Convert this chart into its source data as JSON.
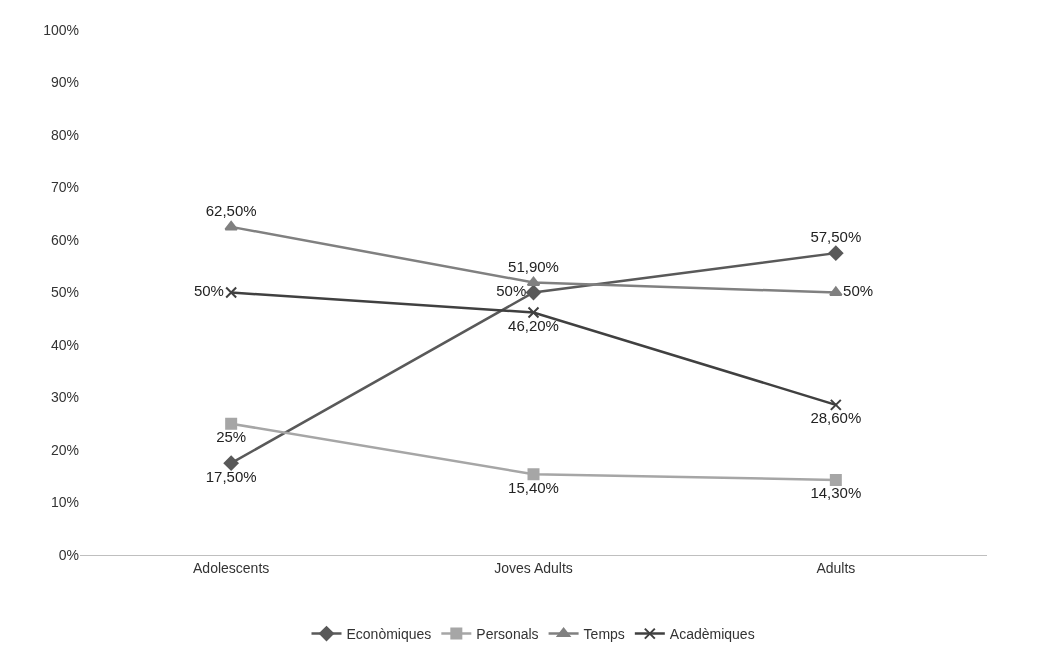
{
  "chart_data": {
    "type": "line",
    "categories": [
      "Adolescents",
      "Joves Adults",
      "Adults"
    ],
    "series": [
      {
        "name": "Econòmiques",
        "color": "#595959",
        "marker": "diamond",
        "values": [
          17.5,
          50,
          57.5
        ],
        "value_labels": [
          "17,50%",
          "50%",
          "57,50%"
        ]
      },
      {
        "name": "Personals",
        "color": "#a6a6a6",
        "marker": "square",
        "values": [
          25,
          15.4,
          14.3
        ],
        "value_labels": [
          "25%",
          "15,40%",
          "14,30%"
        ]
      },
      {
        "name": "Temps",
        "color": "#808080",
        "marker": "triangle",
        "values": [
          62.5,
          51.9,
          50
        ],
        "value_labels": [
          "62,50%",
          "51,90%",
          "50%"
        ]
      },
      {
        "name": "Acadèmiques",
        "color": "#404040",
        "marker": "cross",
        "values": [
          50,
          46.2,
          28.6
        ],
        "value_labels": [
          "50%",
          "46,20%",
          "28,60%"
        ]
      }
    ],
    "ylim": [
      0,
      100
    ],
    "yticks": [
      {
        "value": 0,
        "label": "0%"
      },
      {
        "value": 10,
        "label": "10%"
      },
      {
        "value": 20,
        "label": "20%"
      },
      {
        "value": 30,
        "label": "30%"
      },
      {
        "value": 40,
        "label": "40%"
      },
      {
        "value": 50,
        "label": "50%"
      },
      {
        "value": 60,
        "label": "60%"
      },
      {
        "value": 70,
        "label": "70%"
      },
      {
        "value": 80,
        "label": "80%"
      },
      {
        "value": 90,
        "label": "90%"
      },
      {
        "value": 100,
        "label": "100%"
      }
    ],
    "grid": false,
    "legend": "bottom",
    "line_style": "solid"
  }
}
